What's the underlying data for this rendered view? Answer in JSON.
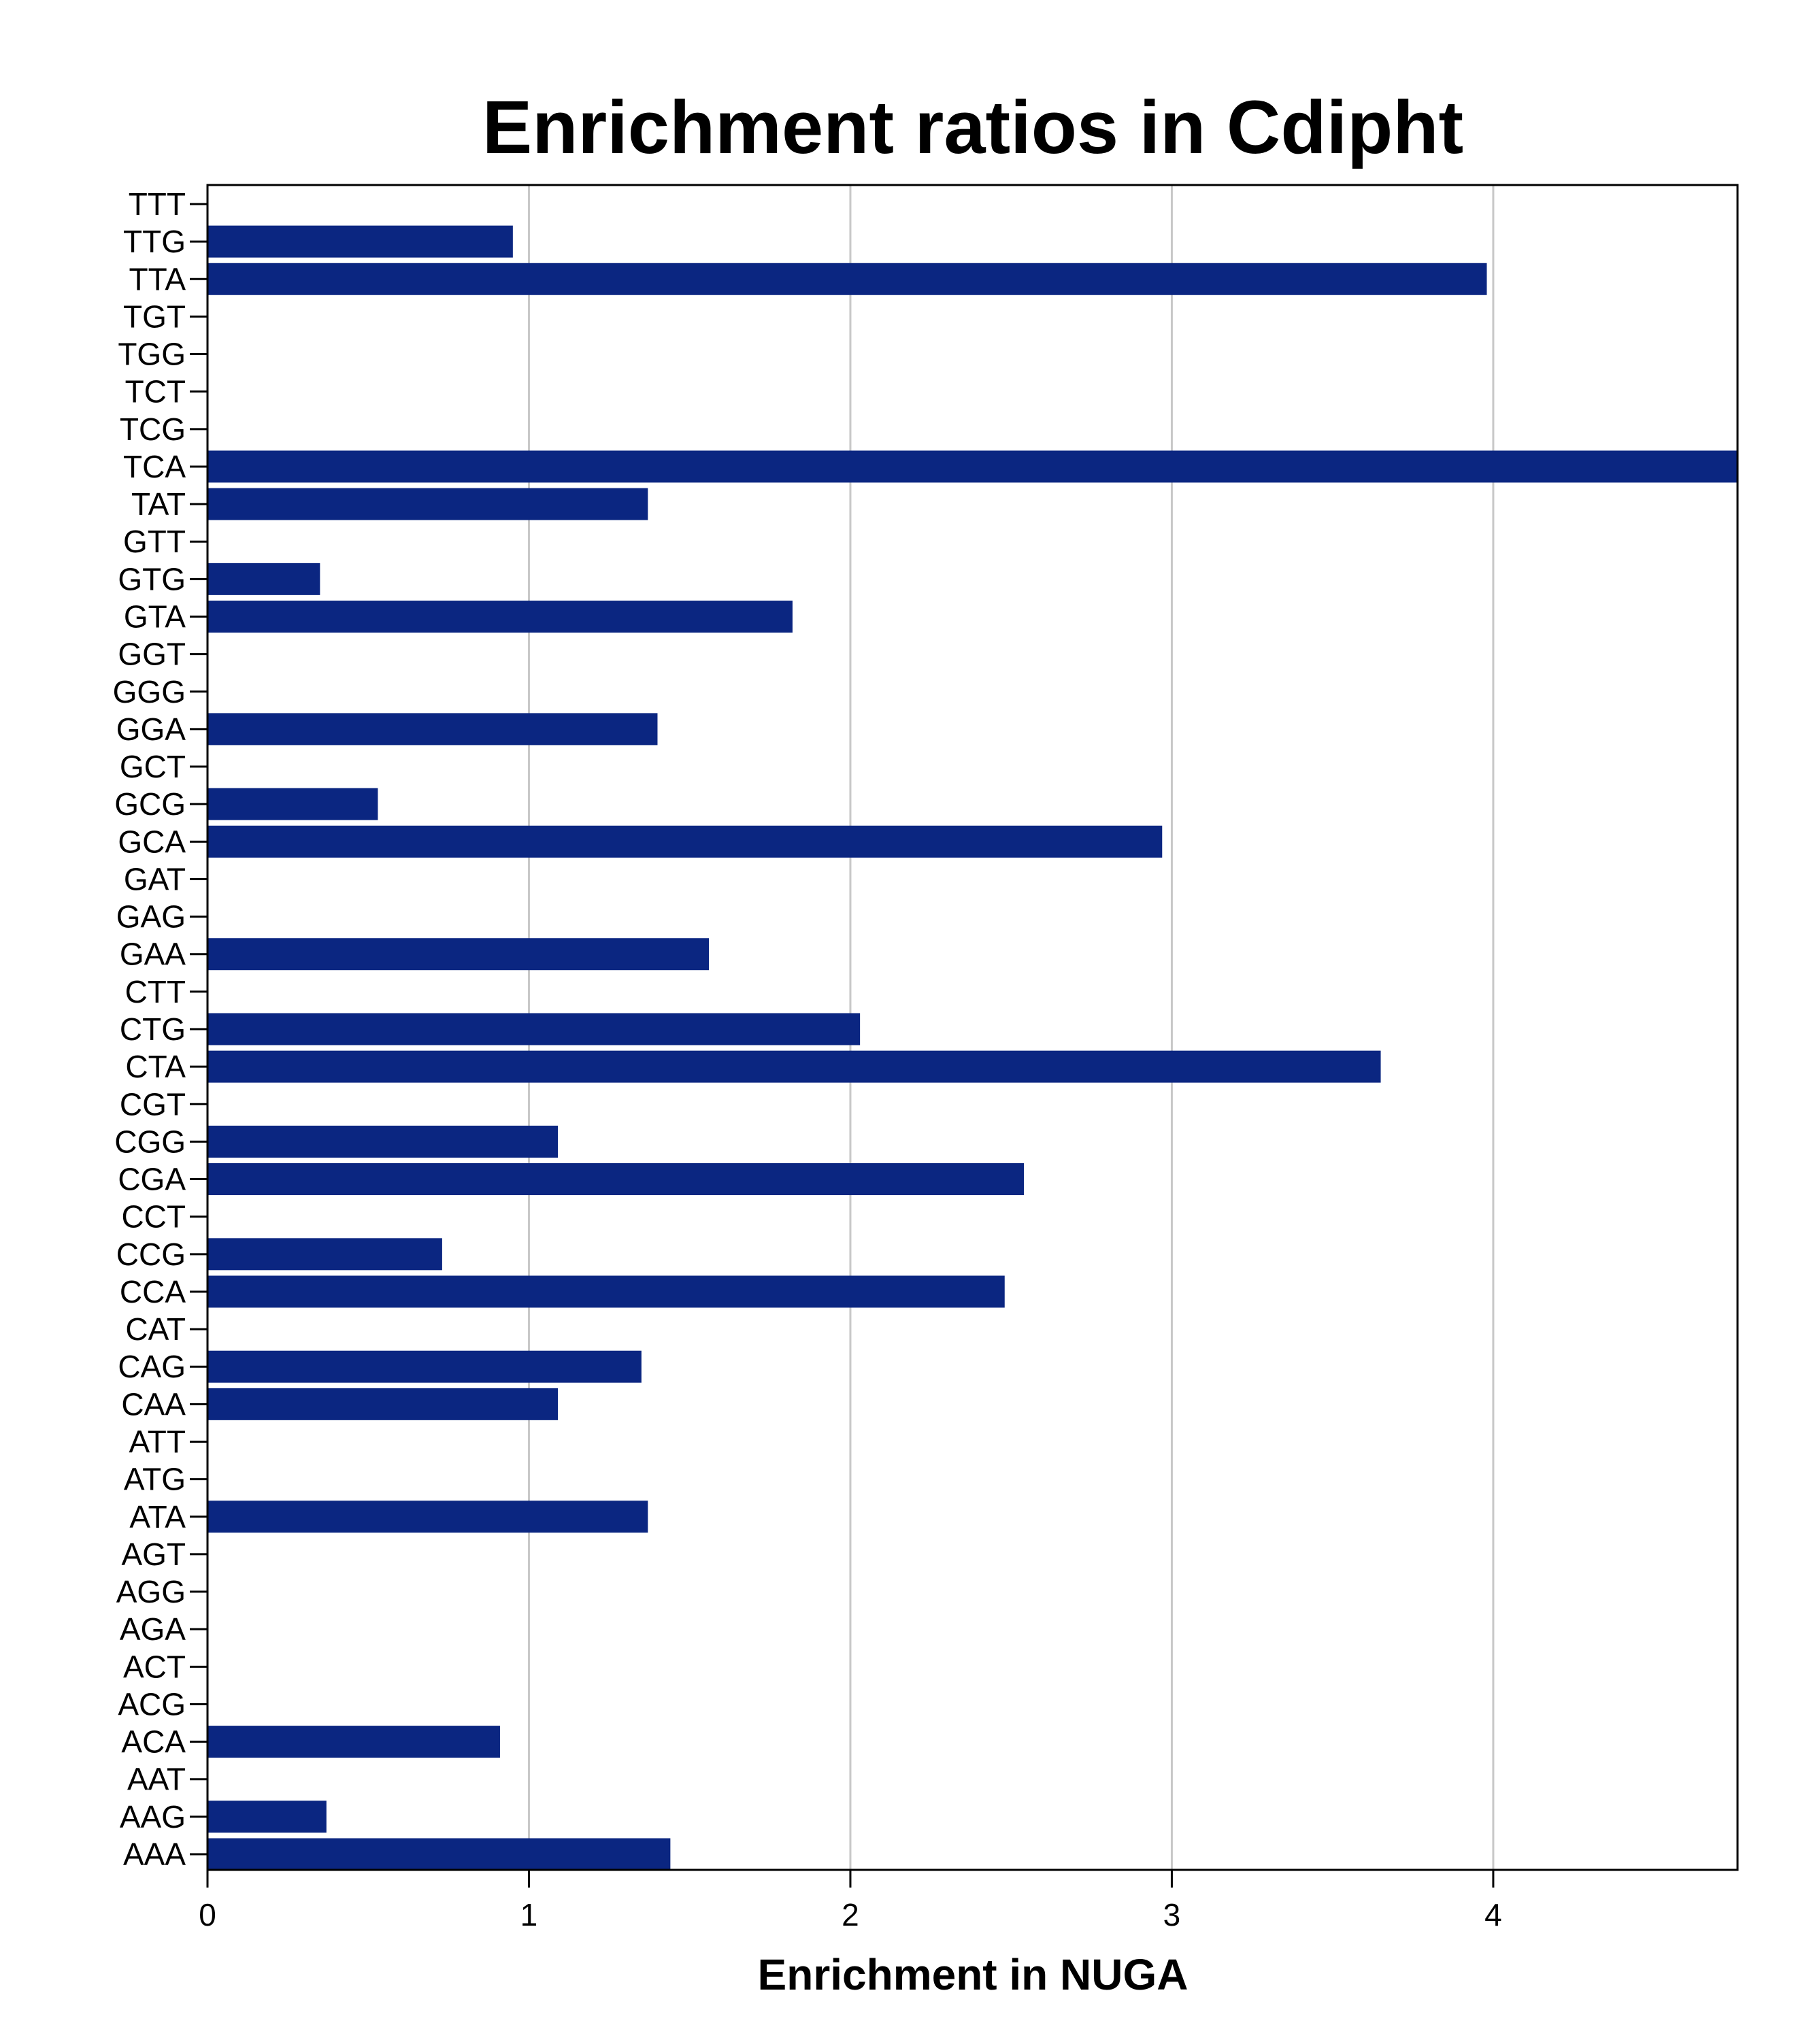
{
  "chart_data": {
    "type": "bar",
    "orientation": "horizontal",
    "title": "Enrichment ratios in Cdipht",
    "xlabel": "Enrichment in NUGA",
    "ylabel": "",
    "xlim": [
      0,
      4.76
    ],
    "xticks": [
      "0",
      "1",
      "2",
      "3",
      "4"
    ],
    "grid": "vertical",
    "bar_color": "#0b2681",
    "grid_color": "#c8c8c8",
    "categories": [
      "TTT",
      "TTG",
      "TTA",
      "TGT",
      "TGG",
      "TCT",
      "TCG",
      "TCA",
      "TAT",
      "GTT",
      "GTG",
      "GTA",
      "GGT",
      "GGG",
      "GGA",
      "GCT",
      "GCG",
      "GCA",
      "GAT",
      "GAG",
      "GAA",
      "CTT",
      "CTG",
      "CTA",
      "CGT",
      "CGG",
      "CGA",
      "CCT",
      "CCG",
      "CCA",
      "CAT",
      "CAG",
      "CAA",
      "ATT",
      "ATG",
      "ATA",
      "AGT",
      "AGG",
      "AGA",
      "ACT",
      "ACG",
      "ACA",
      "AAT",
      "AAG",
      "AAA"
    ],
    "values": [
      0,
      0.95,
      3.98,
      0,
      0,
      0,
      0,
      4.76,
      1.37,
      0,
      0.35,
      1.82,
      0,
      0,
      1.4,
      0,
      0.53,
      2.97,
      0,
      0,
      1.56,
      0,
      2.03,
      3.65,
      0,
      1.09,
      2.54,
      0,
      0.73,
      2.48,
      0,
      1.35,
      1.09,
      0,
      0,
      1.37,
      0,
      0,
      0,
      0,
      0,
      0.91,
      0,
      0.37,
      1.44
    ]
  }
}
